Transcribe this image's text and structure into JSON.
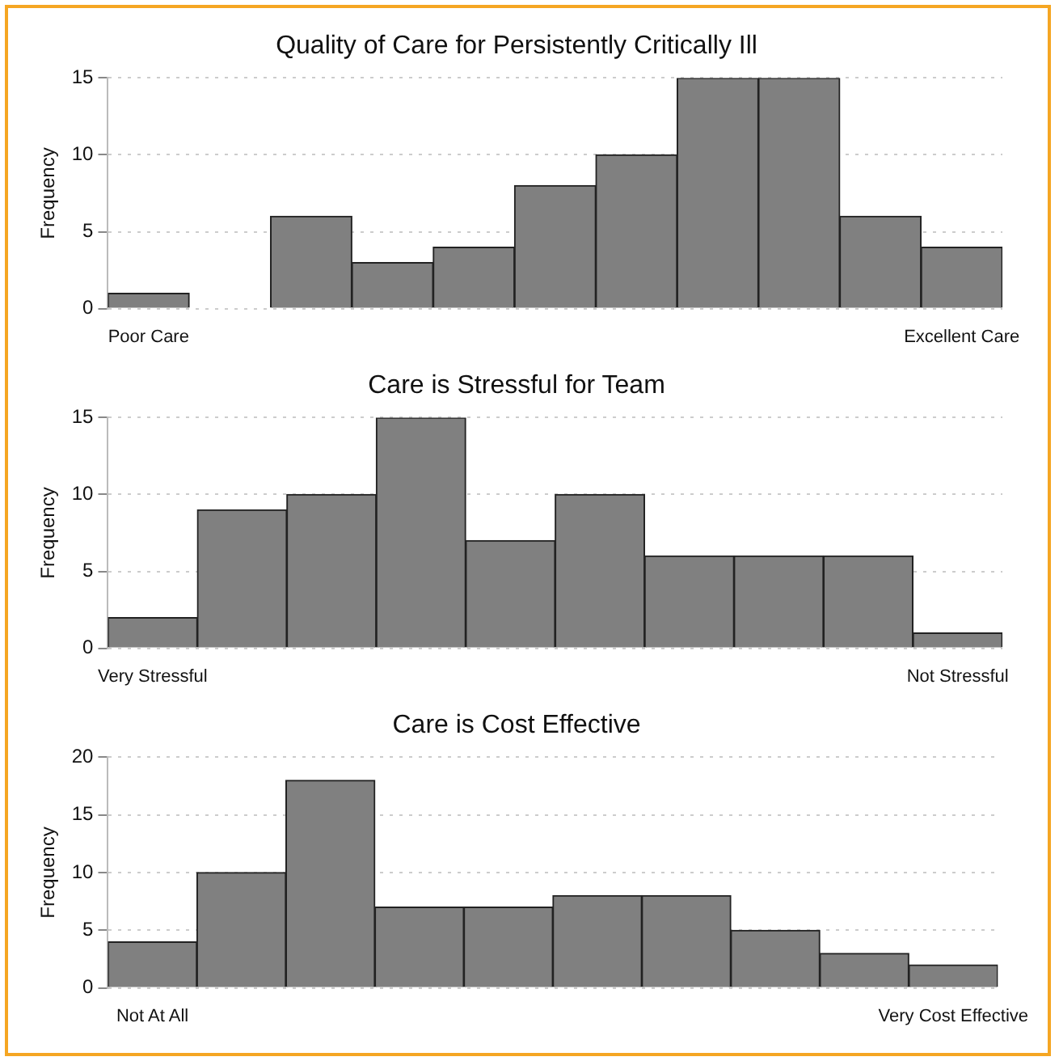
{
  "chart_data": [
    {
      "type": "bar",
      "title": "Quality of Care for Persistently Critically Ill",
      "ylabel": "Frequency",
      "categories": [
        "Poor Care",
        null,
        null,
        null,
        null,
        null,
        null,
        null,
        null,
        null,
        "Excellent Care"
      ],
      "values": [
        1,
        0,
        6,
        3,
        4,
        8,
        10,
        15,
        15,
        6,
        4
      ],
      "color": "#808080",
      "ylim": [
        0,
        15
      ],
      "yticks": [
        0,
        5,
        10,
        15
      ],
      "grid": "y"
    },
    {
      "type": "bar",
      "title": "Care is Stressful for Team",
      "ylabel": "Frequency",
      "categories": [
        "Very Stressful",
        null,
        null,
        null,
        null,
        null,
        null,
        null,
        null,
        "Not Stressful"
      ],
      "values": [
        2,
        9,
        10,
        15,
        7,
        10,
        6,
        6,
        6,
        1
      ],
      "color": "#808080",
      "ylim": [
        0,
        15
      ],
      "yticks": [
        0,
        5,
        10,
        15
      ],
      "grid": "y"
    },
    {
      "type": "bar",
      "title": "Care is Cost Effective",
      "ylabel": "Frequency",
      "categories": [
        "Not At All",
        null,
        null,
        null,
        null,
        null,
        null,
        null,
        null,
        "Very Cost Effective"
      ],
      "values": [
        4,
        10,
        18,
        7,
        7,
        8,
        8,
        5,
        3,
        2
      ],
      "color": "#808080",
      "ylim": [
        0,
        20
      ],
      "yticks": [
        0,
        5,
        10,
        15,
        20
      ],
      "grid": "y"
    }
  ]
}
